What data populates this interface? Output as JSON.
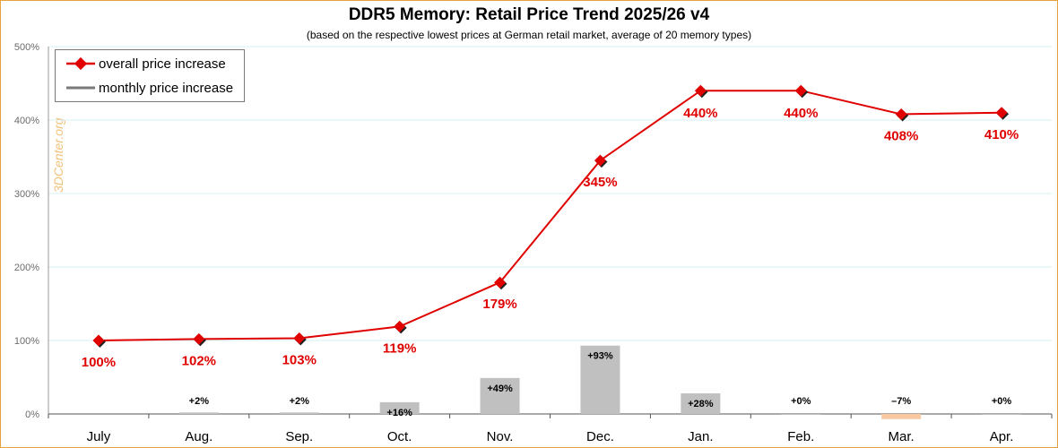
{
  "chart_data": {
    "type": "line",
    "title": "DDR5 Memory: Retail Price Trend 2025/26 v4",
    "subtitle": "(based on the respective lowest prices at German retail market, average of 20 memory types)",
    "watermark": "3DCenter.org",
    "categories": [
      "July",
      "Aug.",
      "Sep.",
      "Oct.",
      "Nov.",
      "Dec.",
      "Jan.",
      "Feb.",
      "Mar.",
      "Apr."
    ],
    "ylim": [
      0,
      500
    ],
    "yticks": [
      "0%",
      "100%",
      "200%",
      "300%",
      "400%",
      "500%"
    ],
    "ytick_values": [
      0,
      100,
      200,
      300,
      400,
      500
    ],
    "series": [
      {
        "name": "overall price increase",
        "type": "line",
        "color": "#e00000",
        "values": [
          100,
          102,
          103,
          119,
          179,
          345,
          440,
          440,
          408,
          410
        ],
        "labels": [
          "100%",
          "102%",
          "103%",
          "119%",
          "179%",
          "345%",
          "440%",
          "440%",
          "408%",
          "410%"
        ]
      },
      {
        "name": "monthly price increase",
        "type": "bar",
        "color": "#c0c0c0",
        "negative_color": "#f8c8a0",
        "values": [
          null,
          2,
          2,
          16,
          49,
          93,
          28,
          0,
          -7,
          0
        ],
        "labels": [
          "",
          "+2%",
          "+2%",
          "+16%",
          "+49%",
          "+93%",
          "+28%",
          "+0%",
          "–7%",
          "+0%"
        ]
      }
    ],
    "grid": true,
    "legend_position": "top-left"
  }
}
